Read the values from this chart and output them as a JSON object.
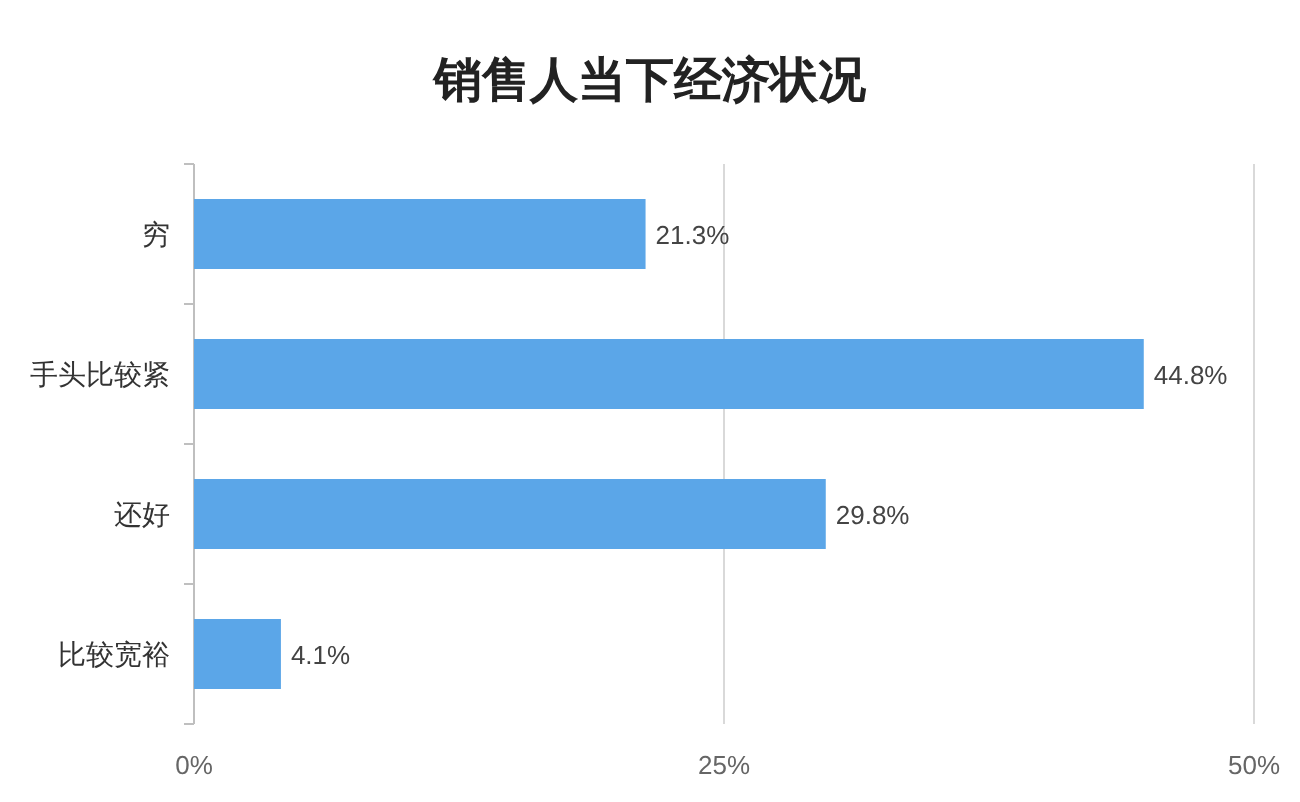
{
  "chart_data": {
    "type": "bar",
    "orientation": "horizontal",
    "title": "销售人当下经济状况",
    "categories": [
      "穷",
      "手头比较紧",
      "还好",
      "比较宽裕"
    ],
    "values": [
      21.3,
      44.8,
      29.8,
      4.1
    ],
    "value_labels": [
      "21.3%",
      "44.8%",
      "29.8%",
      "4.1%"
    ],
    "color": "#5ba6e8",
    "xlim": [
      0,
      50
    ],
    "xticks": [
      {
        "value": 0,
        "label": "0%"
      },
      {
        "value": 25,
        "label": "25%"
      },
      {
        "value": 50,
        "label": "50%"
      }
    ],
    "grid": "x"
  }
}
